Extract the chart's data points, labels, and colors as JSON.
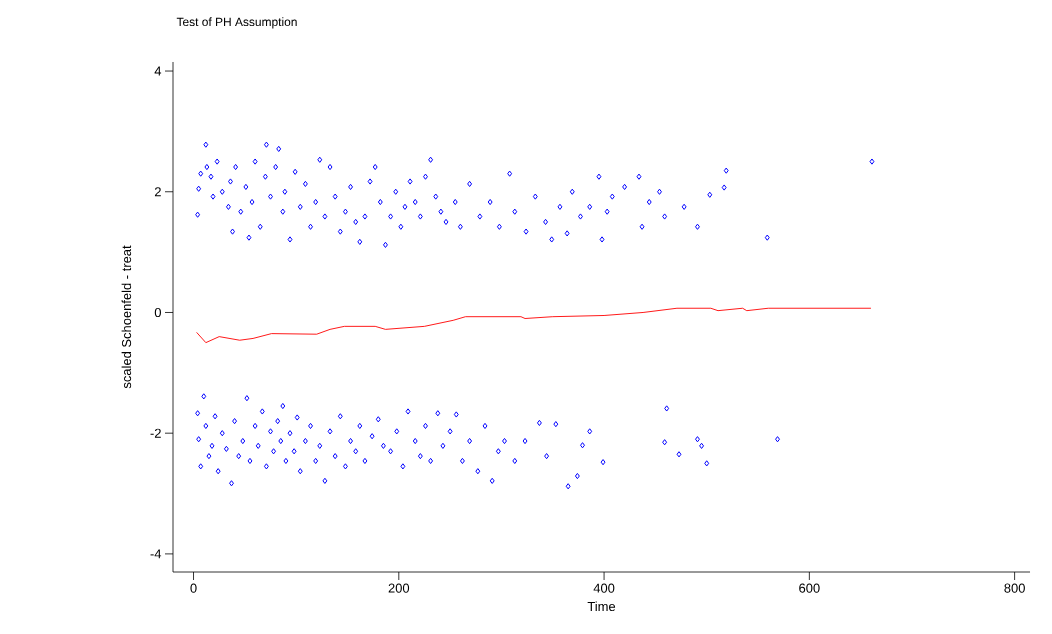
{
  "chart_data": {
    "type": "scatter",
    "title": "Test of PH Assumption",
    "xlabel": "Time",
    "ylabel": "scaled Schoenfeld - treat",
    "xlim": [
      -20,
      815
    ],
    "ylim": [
      -4.3,
      4.15
    ],
    "xticks": [
      0,
      200,
      400,
      600,
      800
    ],
    "yticks": [
      -4,
      -2,
      0,
      2,
      4
    ],
    "grid": false,
    "series": [
      {
        "color": "#0000ff",
        "marker": "diamond",
        "x": [
          4,
          5,
          7,
          12,
          13,
          17,
          19,
          23,
          28,
          34,
          36,
          38,
          41,
          46,
          51,
          54,
          57,
          60,
          65,
          70,
          71,
          75,
          80,
          83,
          87,
          89,
          94,
          99,
          104,
          109,
          114,
          119,
          123,
          128,
          133,
          138,
          143,
          148,
          153,
          158,
          162,
          167,
          172,
          177,
          182,
          187,
          192,
          197,
          202,
          206,
          211,
          216,
          221,
          226,
          231,
          236,
          241,
          246,
          255,
          260,
          269,
          279,
          289,
          298,
          308,
          313,
          324,
          333,
          343,
          349,
          357,
          364,
          369,
          377,
          386,
          395,
          398,
          403,
          408,
          420,
          434,
          437,
          444,
          454,
          459,
          478,
          491,
          503,
          517,
          519,
          559,
          661,
          4,
          5,
          7,
          10,
          12,
          15,
          18,
          21,
          24,
          28,
          32,
          37,
          40,
          44,
          48,
          52,
          55,
          60,
          63,
          67,
          71,
          75,
          78,
          82,
          85,
          87,
          90,
          94,
          98,
          101,
          104,
          109,
          114,
          119,
          123,
          128,
          133,
          138,
          143,
          148,
          153,
          158,
          162,
          167,
          174,
          180,
          185,
          192,
          198,
          204,
          209,
          216,
          221,
          226,
          231,
          238,
          243,
          250,
          256,
          262,
          269,
          277,
          284,
          291,
          297,
          303,
          313,
          323,
          337,
          344,
          353,
          365,
          374,
          379,
          386,
          399,
          461,
          459,
          473,
          491,
          495,
          500,
          569
        ],
        "values": [
          1.62,
          2.05,
          2.3,
          2.78,
          2.41,
          2.25,
          1.92,
          2.5,
          2.0,
          1.75,
          2.17,
          1.34,
          2.41,
          1.67,
          2.08,
          1.24,
          1.83,
          2.5,
          1.42,
          2.25,
          2.78,
          1.92,
          2.41,
          2.71,
          1.67,
          2.0,
          1.21,
          2.33,
          1.75,
          2.13,
          1.42,
          1.83,
          2.53,
          1.59,
          2.41,
          1.92,
          1.34,
          1.67,
          2.08,
          1.5,
          1.17,
          1.59,
          2.17,
          2.41,
          1.83,
          1.12,
          1.59,
          2.0,
          1.42,
          1.75,
          2.17,
          1.83,
          1.59,
          2.25,
          2.53,
          1.92,
          1.67,
          1.5,
          1.83,
          1.42,
          2.13,
          1.59,
          1.83,
          1.42,
          2.3,
          1.67,
          1.34,
          1.92,
          1.5,
          1.21,
          1.75,
          1.31,
          2.0,
          1.59,
          1.75,
          2.25,
          1.21,
          1.67,
          1.92,
          2.08,
          2.25,
          1.42,
          1.83,
          2.0,
          1.59,
          1.75,
          1.42,
          1.95,
          2.07,
          2.35,
          1.24,
          2.5,
          -1.67,
          -2.1,
          -2.55,
          -1.39,
          -1.88,
          -2.38,
          -2.21,
          -1.72,
          -2.63,
          -2.0,
          -2.26,
          -2.83,
          -1.8,
          -2.38,
          -2.13,
          -1.42,
          -2.46,
          -1.88,
          -2.21,
          -1.64,
          -2.55,
          -1.97,
          -2.3,
          -1.8,
          -2.13,
          -1.55,
          -2.46,
          -2.0,
          -2.3,
          -1.74,
          -2.63,
          -2.13,
          -1.88,
          -2.46,
          -2.21,
          -2.79,
          -1.97,
          -2.38,
          -1.72,
          -2.55,
          -2.13,
          -2.3,
          -1.88,
          -2.46,
          -2.05,
          -1.77,
          -2.21,
          -2.3,
          -1.97,
          -2.55,
          -1.64,
          -2.13,
          -2.38,
          -1.88,
          -2.46,
          -1.67,
          -2.21,
          -1.97,
          -1.69,
          -2.46,
          -2.13,
          -2.63,
          -1.88,
          -2.79,
          -2.3,
          -2.13,
          -2.46,
          -2.13,
          -1.83,
          -2.38,
          -1.85,
          -2.88,
          -2.71,
          -2.2,
          -1.97,
          -2.48,
          -1.59,
          -2.15,
          -2.35,
          -2.1,
          -2.21,
          -2.5,
          -2.1
        ]
      },
      {
        "type": "line",
        "color": "#ff0000",
        "marker": "none",
        "line_style": "solid",
        "x": [
          3,
          12,
          25,
          45,
          58,
          76,
          120,
          133,
          147,
          177,
          187,
          225,
          253,
          265,
          319,
          323,
          350,
          400,
          438,
          471,
          504,
          511,
          535,
          539,
          560,
          660
        ],
        "values": [
          -0.33,
          -0.5,
          -0.4,
          -0.46,
          -0.43,
          -0.35,
          -0.36,
          -0.28,
          -0.23,
          -0.23,
          -0.28,
          -0.23,
          -0.13,
          -0.07,
          -0.07,
          -0.1,
          -0.07,
          -0.05,
          0.0,
          0.07,
          0.07,
          0.03,
          0.07,
          0.03,
          0.07,
          0.07
        ]
      }
    ]
  }
}
